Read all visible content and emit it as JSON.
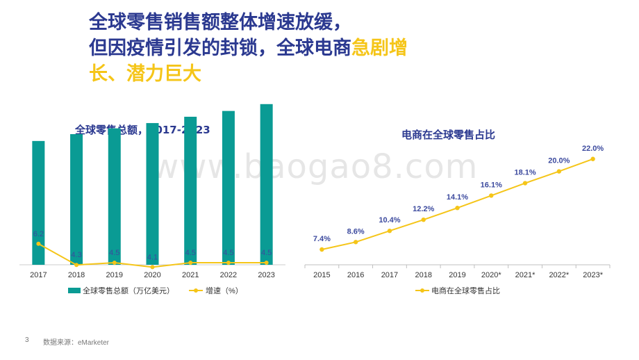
{
  "headline": {
    "line1": "全球零售销售额整体增速放缓，",
    "line2": "但因疫情引发的封锁，全球电商",
    "line2_accent": "急剧增",
    "line3_accent": "长、潜力巨大"
  },
  "watermark": "www.baogao8.com",
  "footer": {
    "page": "3",
    "source": "数据来源：eMarketer"
  },
  "colors": {
    "bar": "#0a9b94",
    "line": "#f5c518",
    "title": "#2b3990",
    "label": "#3c4a9e"
  },
  "chart_data": [
    {
      "type": "bar",
      "title": "全球零售总额，2017-2023",
      "categories": [
        "2017",
        "2018",
        "2019",
        "2020",
        "2021",
        "2022",
        "2023"
      ],
      "series": [
        {
          "name": "全球零售总额（万亿美元）",
          "type": "bar",
          "values": [
            23.5,
            24.8,
            25.9,
            26.9,
            28.1,
            29.2,
            30.5
          ]
        },
        {
          "name": "增速（%）",
          "type": "line",
          "values": [
            6.2,
            4.3,
            4.5,
            4.1,
            4.5,
            4.5,
            4.5
          ],
          "labels": [
            "6.2",
            "4.3",
            "4.5",
            "4.1",
            "4.5",
            "4.5",
            "4.5"
          ]
        }
      ],
      "legend": "bottom"
    },
    {
      "type": "line",
      "title": "电商在全球零售占比",
      "categories": [
        "2015",
        "2016",
        "2017",
        "2018",
        "2019",
        "2020*",
        "2021*",
        "2022*",
        "2023*"
      ],
      "series": [
        {
          "name": "电商在全球零售占比",
          "values": [
            7.4,
            8.6,
            10.4,
            12.2,
            14.1,
            16.1,
            18.1,
            20.0,
            22.0
          ],
          "labels": [
            "7.4%",
            "8.6%",
            "10.4%",
            "12.2%",
            "14.1%",
            "16.1%",
            "18.1%",
            "20.0%",
            "22.0%"
          ]
        }
      ],
      "legend": "bottom"
    }
  ]
}
